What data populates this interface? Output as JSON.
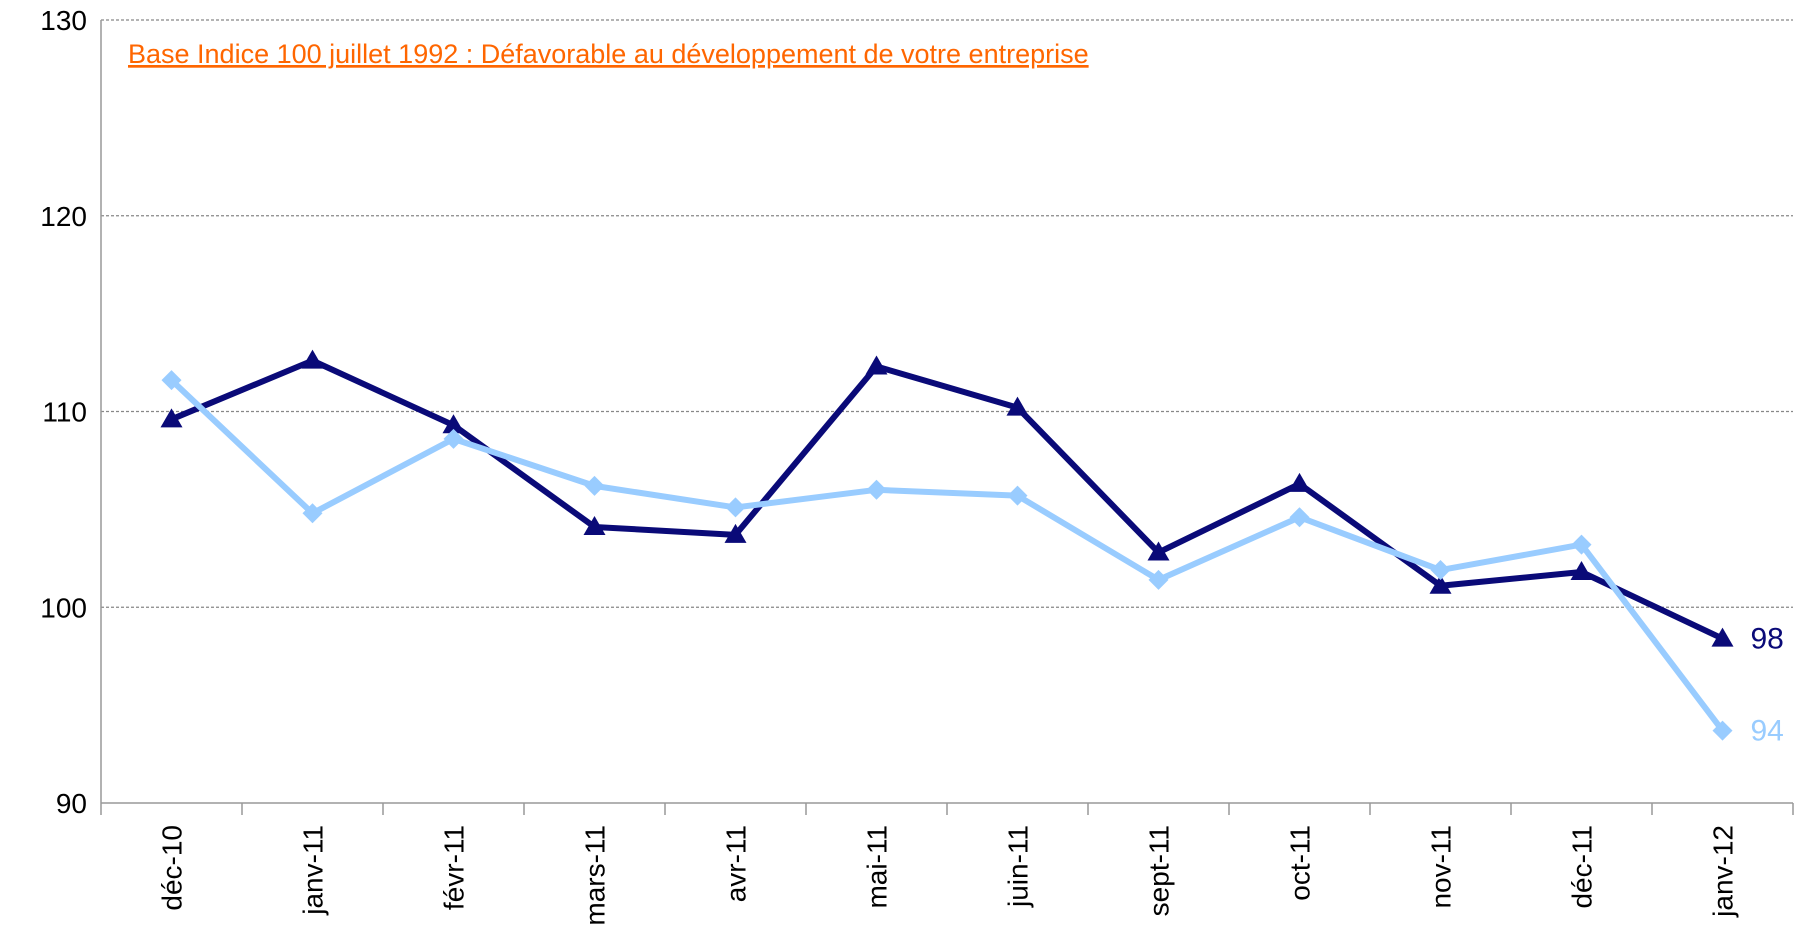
{
  "chart_data": {
    "type": "line",
    "annotation": "Base Indice 100 juillet 1992 : Défavorable au développement de votre entreprise",
    "annotation_color": "#ff6600",
    "categories": [
      "déc-10",
      "janv-11",
      "févr-11",
      "mars-11",
      "avr-11",
      "mai-11",
      "juin-11",
      "sept-11",
      "oct-11",
      "nov-11",
      "déc-11",
      "janv-12"
    ],
    "series": [
      {
        "color": "#0a0a78",
        "marker": "triangle",
        "values": [
          109.6,
          112.6,
          109.3,
          104.1,
          103.7,
          112.3,
          110.2,
          102.8,
          106.3,
          101.1,
          101.8,
          98.4
        ],
        "value_labels": [
          null,
          null,
          null,
          null,
          null,
          null,
          null,
          null,
          null,
          null,
          null,
          "98"
        ]
      },
      {
        "color": "#99ccff",
        "marker": "diamond",
        "values": [
          111.6,
          104.8,
          108.6,
          106.2,
          105.1,
          106.0,
          105.7,
          101.4,
          104.6,
          101.9,
          103.2,
          93.7
        ],
        "value_labels": [
          null,
          null,
          null,
          null,
          null,
          null,
          null,
          null,
          null,
          null,
          null,
          "94"
        ]
      }
    ],
    "ylim": [
      90,
      130
    ],
    "yticks": [
      90,
      100,
      110,
      120,
      130
    ],
    "grid": true
  }
}
